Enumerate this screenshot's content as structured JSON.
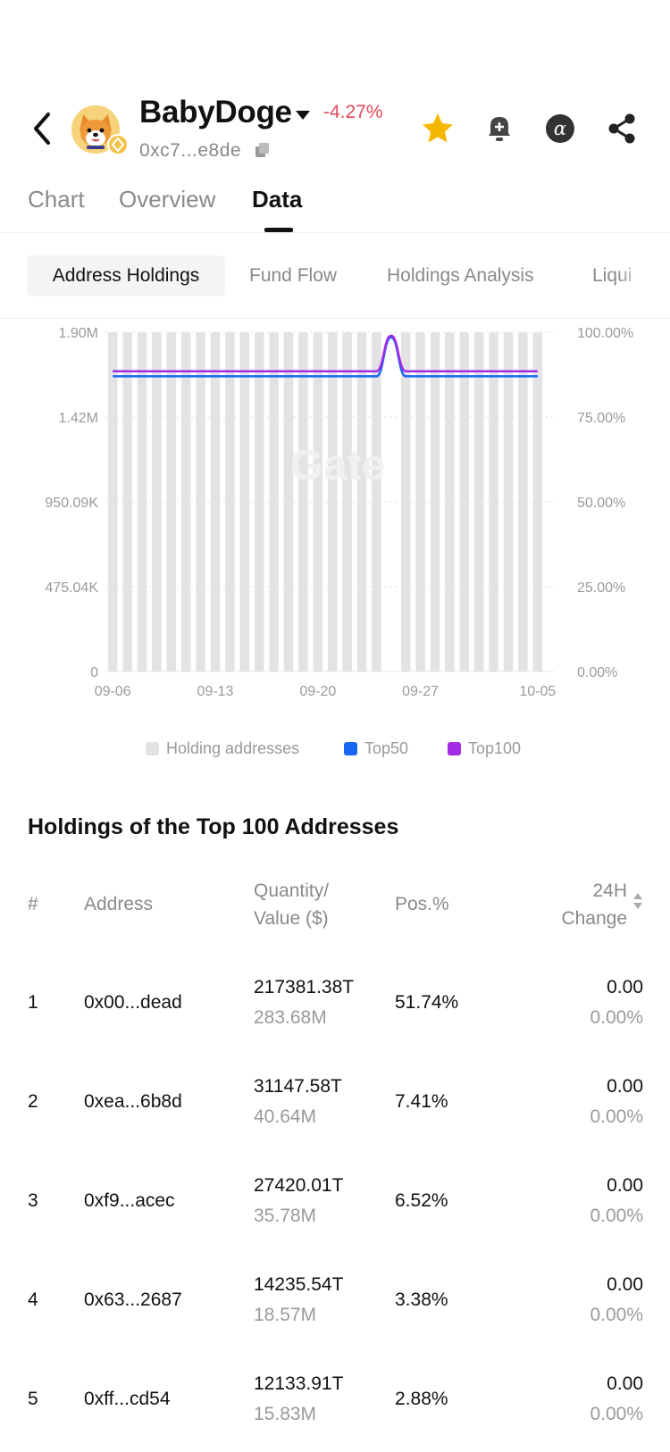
{
  "header": {
    "token_name": "BabyDoge",
    "price_change": "-4.27%",
    "contract_address": "0xc7...e8de"
  },
  "tabs": [
    {
      "label": "Chart",
      "active": false
    },
    {
      "label": "Overview",
      "active": false
    },
    {
      "label": "Data",
      "active": true
    }
  ],
  "subtabs": [
    {
      "label": "Address Holdings",
      "active": true
    },
    {
      "label": "Fund Flow",
      "active": false
    },
    {
      "label": "Holdings Analysis",
      "active": false
    },
    {
      "label": "Liqui",
      "active": false
    }
  ],
  "colors": {
    "bar": "#e3e3e5",
    "top50": "#1767f2",
    "top100": "#a32be6",
    "negative": "#e5485c",
    "star": "#f5b800"
  },
  "chart_data": {
    "type": "bar",
    "title": "",
    "watermark": "Gate",
    "categories": [
      "09-06",
      "09-07",
      "09-08",
      "09-09",
      "09-10",
      "09-11",
      "09-12",
      "09-13",
      "09-14",
      "09-15",
      "09-16",
      "09-17",
      "09-18",
      "09-19",
      "09-20",
      "09-21",
      "09-22",
      "09-23",
      "09-24",
      "09-25",
      "09-26",
      "09-27",
      "09-28",
      "09-29",
      "09-30",
      "10-01",
      "10-02",
      "10-03",
      "10-04",
      "10-05"
    ],
    "x_tick_labels": [
      "09-06",
      "09-13",
      "09-20",
      "09-27",
      "10-05"
    ],
    "left_axis": {
      "ticks": [
        "0",
        "475.04K",
        "950.09K",
        "1.42M",
        "1.90M"
      ],
      "range": [
        0,
        1900360
      ]
    },
    "right_axis": {
      "ticks": [
        "0.00%",
        "25.00%",
        "50.00%",
        "75.00%",
        "100.00%"
      ],
      "range": [
        0,
        100
      ]
    },
    "series": [
      {
        "name": "Holding addresses",
        "kind": "bar",
        "axis": "left",
        "values": [
          1900000,
          1900000,
          1900000,
          1900000,
          1900000,
          1900000,
          1900000,
          1900000,
          1900000,
          1900000,
          1900000,
          1900000,
          1900000,
          1900000,
          1900000,
          1900000,
          1900000,
          1900000,
          1900000,
          null,
          1900000,
          1900000,
          1900000,
          1900000,
          1900000,
          1900000,
          1900000,
          1900000,
          1900000,
          1900000
        ]
      },
      {
        "name": "Top50",
        "kind": "line",
        "axis": "right",
        "values": [
          87.0,
          87.0,
          87.0,
          87.0,
          87.0,
          87.0,
          87.0,
          87.0,
          87.0,
          87.0,
          87.0,
          87.0,
          87.0,
          87.0,
          87.0,
          87.0,
          87.0,
          87.0,
          87.0,
          98.5,
          87.0,
          87.0,
          87.0,
          87.0,
          87.0,
          87.0,
          87.0,
          87.0,
          87.0,
          87.0
        ]
      },
      {
        "name": "Top100",
        "kind": "line",
        "axis": "right",
        "values": [
          88.5,
          88.5,
          88.5,
          88.5,
          88.5,
          88.5,
          88.5,
          88.5,
          88.5,
          88.5,
          88.5,
          88.5,
          88.5,
          88.5,
          88.5,
          88.5,
          88.5,
          88.5,
          88.5,
          99.0,
          88.5,
          88.5,
          88.5,
          88.5,
          88.5,
          88.5,
          88.5,
          88.5,
          88.5,
          88.5
        ]
      }
    ],
    "legend": [
      {
        "label": "Holding addresses",
        "color": "#e3e3e5"
      },
      {
        "label": "Top50",
        "color": "#1767f2"
      },
      {
        "label": "Top100",
        "color": "#a32be6"
      }
    ]
  },
  "holdings": {
    "title": "Holdings of the Top 100 Addresses",
    "columns": {
      "rank": "#",
      "address": "Address",
      "qty_line1": "Quantity/",
      "qty_line2": "Value ($)",
      "pos": "Pos.%",
      "change_line1": "24H",
      "change_line2": "Change"
    },
    "rows": [
      {
        "rank": "1",
        "address": "0x00...dead",
        "quantity": "217381.38T",
        "value": "283.68M",
        "pos": "51.74%",
        "change": "0.00",
        "change_pct": "0.00%"
      },
      {
        "rank": "2",
        "address": "0xea...6b8d",
        "quantity": "31147.58T",
        "value": "40.64M",
        "pos": "7.41%",
        "change": "0.00",
        "change_pct": "0.00%"
      },
      {
        "rank": "3",
        "address": "0xf9...acec",
        "quantity": "27420.01T",
        "value": "35.78M",
        "pos": "6.52%",
        "change": "0.00",
        "change_pct": "0.00%"
      },
      {
        "rank": "4",
        "address": "0x63...2687",
        "quantity": "14235.54T",
        "value": "18.57M",
        "pos": "3.38%",
        "change": "0.00",
        "change_pct": "0.00%"
      },
      {
        "rank": "5",
        "address": "0xff...cd54",
        "quantity": "12133.91T",
        "value": "15.83M",
        "pos": "2.88%",
        "change": "0.00",
        "change_pct": "0.00%"
      }
    ]
  }
}
